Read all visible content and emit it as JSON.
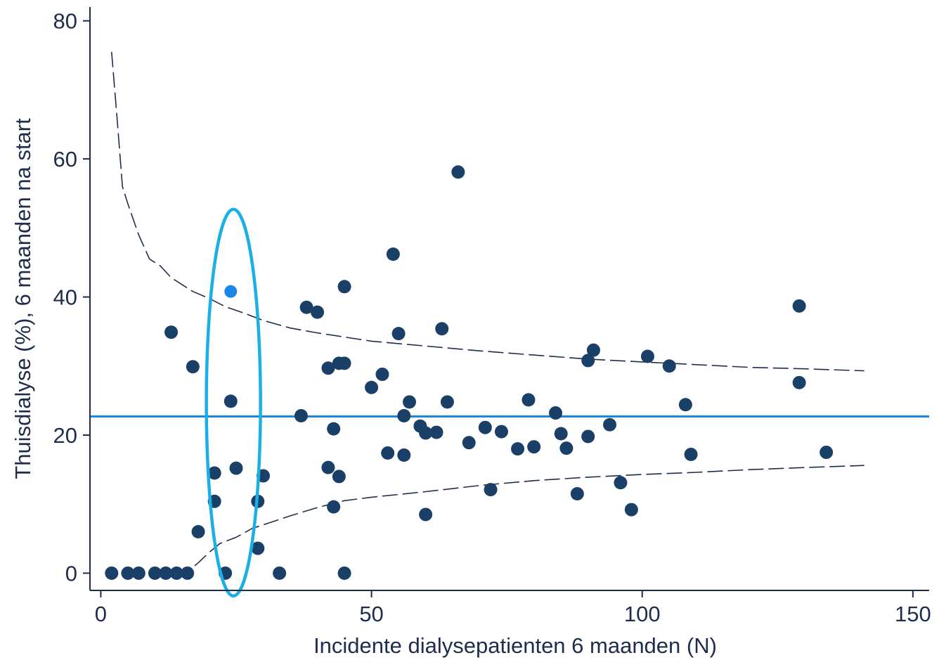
{
  "chart_data": {
    "type": "scatter",
    "title": "",
    "xlabel": "Incidente dialysepatienten 6 maanden (N)",
    "ylabel": "Thuisdialyse (%), 6 maanden na start",
    "xlim": [
      -2,
      153
    ],
    "ylim": [
      -2.5,
      82
    ],
    "xticks": [
      0,
      50,
      100,
      150
    ],
    "yticks": [
      0,
      20,
      40,
      60,
      80
    ],
    "grid": false,
    "legend": "none",
    "colors": {
      "points": "#1b4068",
      "highlight_point": "#1a86e6",
      "mean_line": "#1a86e0",
      "highlight_ellipse": "#1ab0e6",
      "axes_text": "#1f2d4d"
    },
    "reference_line": {
      "y": 22.7
    },
    "highlight_region": {
      "x_center": 24.5,
      "y_center": 24.7,
      "x_halfwidth": 5,
      "y_halfheight": 28
    },
    "highlighted_point": {
      "x": 24,
      "y": 40.8
    },
    "points": [
      {
        "x": 2,
        "y": 0
      },
      {
        "x": 5,
        "y": 0
      },
      {
        "x": 7,
        "y": 0
      },
      {
        "x": 10,
        "y": 0
      },
      {
        "x": 12,
        "y": 0
      },
      {
        "x": 14,
        "y": 0
      },
      {
        "x": 16,
        "y": 0
      },
      {
        "x": 13,
        "y": 34.9
      },
      {
        "x": 17,
        "y": 29.9
      },
      {
        "x": 18,
        "y": 6.0
      },
      {
        "x": 21,
        "y": 14.5
      },
      {
        "x": 21,
        "y": 10.4
      },
      {
        "x": 23,
        "y": 0
      },
      {
        "x": 24,
        "y": 24.9
      },
      {
        "x": 25,
        "y": 15.2
      },
      {
        "x": 29,
        "y": 10.4
      },
      {
        "x": 29,
        "y": 3.6
      },
      {
        "x": 30,
        "y": 14.1
      },
      {
        "x": 33,
        "y": 0
      },
      {
        "x": 37,
        "y": 22.8
      },
      {
        "x": 38,
        "y": 38.5
      },
      {
        "x": 40,
        "y": 37.8
      },
      {
        "x": 42,
        "y": 29.7
      },
      {
        "x": 42,
        "y": 15.3
      },
      {
        "x": 43,
        "y": 20.9
      },
      {
        "x": 43,
        "y": 9.6
      },
      {
        "x": 44,
        "y": 30.4
      },
      {
        "x": 44,
        "y": 14.0
      },
      {
        "x": 45,
        "y": 41.5
      },
      {
        "x": 45,
        "y": 30.4
      },
      {
        "x": 45,
        "y": 0
      },
      {
        "x": 50,
        "y": 26.9
      },
      {
        "x": 52,
        "y": 28.8
      },
      {
        "x": 53,
        "y": 17.4
      },
      {
        "x": 54,
        "y": 46.2
      },
      {
        "x": 55,
        "y": 34.7
      },
      {
        "x": 56,
        "y": 22.8
      },
      {
        "x": 56,
        "y": 17.1
      },
      {
        "x": 57,
        "y": 24.8
      },
      {
        "x": 59,
        "y": 21.3
      },
      {
        "x": 60,
        "y": 20.3
      },
      {
        "x": 60,
        "y": 8.5
      },
      {
        "x": 62,
        "y": 20.4
      },
      {
        "x": 63,
        "y": 35.4
      },
      {
        "x": 64,
        "y": 24.8
      },
      {
        "x": 66,
        "y": 58.1
      },
      {
        "x": 68,
        "y": 18.9
      },
      {
        "x": 71,
        "y": 21.1
      },
      {
        "x": 72,
        "y": 12.1
      },
      {
        "x": 74,
        "y": 20.5
      },
      {
        "x": 77,
        "y": 18.0
      },
      {
        "x": 79,
        "y": 25.1
      },
      {
        "x": 80,
        "y": 18.3
      },
      {
        "x": 84,
        "y": 23.2
      },
      {
        "x": 85,
        "y": 20.2
      },
      {
        "x": 86,
        "y": 18.1
      },
      {
        "x": 88,
        "y": 11.5
      },
      {
        "x": 90,
        "y": 30.8
      },
      {
        "x": 90,
        "y": 19.8
      },
      {
        "x": 91,
        "y": 32.3
      },
      {
        "x": 94,
        "y": 21.5
      },
      {
        "x": 96,
        "y": 13.1
      },
      {
        "x": 98,
        "y": 9.2
      },
      {
        "x": 101,
        "y": 31.4
      },
      {
        "x": 105,
        "y": 30.0
      },
      {
        "x": 108,
        "y": 24.4
      },
      {
        "x": 109,
        "y": 17.2
      },
      {
        "x": 129,
        "y": 38.7
      },
      {
        "x": 129,
        "y": 27.6
      },
      {
        "x": 134,
        "y": 17.5
      }
    ],
    "upper_limit": [
      [
        2,
        75.5
      ],
      [
        3,
        66
      ],
      [
        4,
        56
      ],
      [
        5,
        53.5
      ],
      [
        7,
        49
      ],
      [
        9,
        45.5
      ],
      [
        11,
        44.5
      ],
      [
        13,
        42.8
      ],
      [
        15,
        41.8
      ],
      [
        17,
        40.8
      ],
      [
        20,
        39.8
      ],
      [
        23,
        38.6
      ],
      [
        26,
        37.8
      ],
      [
        30,
        36.6
      ],
      [
        35,
        35.5
      ],
      [
        40,
        34.8
      ],
      [
        50,
        33.6
      ],
      [
        60,
        32.9
      ],
      [
        70,
        32.2
      ],
      [
        80,
        31.6
      ],
      [
        90,
        31.0
      ],
      [
        100,
        30.6
      ],
      [
        110,
        30.2
      ],
      [
        120,
        29.8
      ],
      [
        130,
        29.6
      ],
      [
        141,
        29.3
      ]
    ],
    "lower_limit": [
      [
        14,
        0
      ],
      [
        16,
        0.2
      ],
      [
        18,
        1.5
      ],
      [
        20,
        3.0
      ],
      [
        22,
        4.3
      ],
      [
        25,
        5.2
      ],
      [
        28,
        6.5
      ],
      [
        30,
        7.0
      ],
      [
        35,
        8.3
      ],
      [
        40,
        9.5
      ],
      [
        45,
        10.5
      ],
      [
        50,
        11.0
      ],
      [
        55,
        11.4
      ],
      [
        60,
        11.8
      ],
      [
        70,
        12.7
      ],
      [
        80,
        13.4
      ],
      [
        90,
        13.9
      ],
      [
        100,
        14.3
      ],
      [
        110,
        14.6
      ],
      [
        120,
        15.0
      ],
      [
        130,
        15.3
      ],
      [
        141,
        15.6
      ]
    ]
  }
}
